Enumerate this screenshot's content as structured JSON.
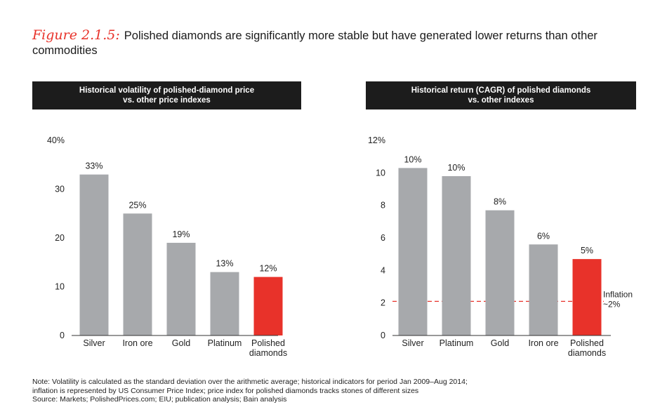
{
  "title": {
    "figure_label": "Figure 2.1.5:",
    "text": "Polished diamonds are significantly more stable but have generated lower returns than other commodities"
  },
  "colors": {
    "bar_default": "#a7a9ac",
    "bar_highlight": "#e8322a",
    "header_bg": "#1c1c1c",
    "inflation_line": "#e8322a"
  },
  "chart_data": [
    {
      "type": "bar",
      "header_lines": [
        "Historical volatility of polished-diamond price",
        "vs. other price indexes"
      ],
      "categories": [
        "Silver",
        "Iron ore",
        "Gold",
        "Platinum",
        "Polished diamonds"
      ],
      "values": [
        33,
        25,
        19,
        13,
        12
      ],
      "value_labels": [
        "33%",
        "25%",
        "19%",
        "13%",
        "12%"
      ],
      "highlight_index": 4,
      "ylim": [
        0,
        40
      ],
      "yticks": [
        0,
        10,
        20,
        30,
        40
      ],
      "ytick_labels": [
        "0",
        "10",
        "20",
        "30",
        "40%"
      ],
      "grid": false
    },
    {
      "type": "bar",
      "header_lines": [
        "Historical return (CAGR) of polished diamonds",
        "vs. other indexes"
      ],
      "categories": [
        "Silver",
        "Platinum",
        "Gold",
        "Iron ore",
        "Polished diamonds"
      ],
      "values": [
        10.3,
        9.8,
        7.7,
        5.6,
        4.7
      ],
      "value_labels": [
        "10%",
        "10%",
        "8%",
        "6%",
        "5%"
      ],
      "highlight_index": 4,
      "ylim": [
        0,
        12
      ],
      "yticks": [
        0,
        2,
        4,
        6,
        8,
        10,
        12
      ],
      "ytick_labels": [
        "0",
        "2",
        "4",
        "6",
        "8",
        "10",
        "12%"
      ],
      "grid": false,
      "reference_line": {
        "value": 2.1,
        "label_lines": [
          "Inflation",
          "~2%"
        ]
      }
    }
  ],
  "notes": {
    "line1": "Note:  Volatility is calculated as the standard deviation over the arithmetic average; historical indicators for period Jan 2009–Aug 2014;",
    "line2": "inflation is represented by US Consumer Price Index; price index for polished diamonds tracks stones of different sizes",
    "line3": "Source:  Markets; PolishedPrices.com; EIU; publication analysis; Bain analysis"
  }
}
